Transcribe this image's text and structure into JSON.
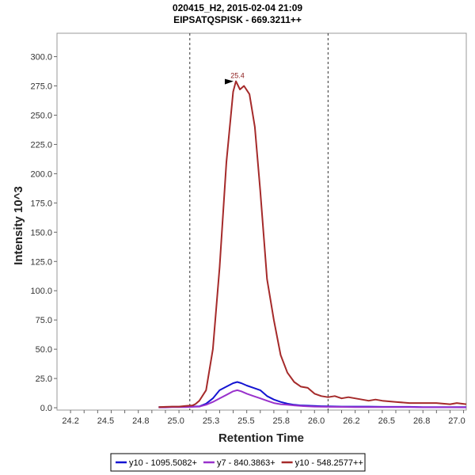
{
  "chart_data": {
    "type": "line",
    "title": "020415_H2, 2015-02-04 21:09",
    "subtitle": "EIPSATQSPISK - 669.3211++",
    "xlabel": "Retention Time",
    "ylabel": "Intensity 10^3",
    "xlim": [
      24.1,
      27.12
    ],
    "ylim": [
      -2,
      320
    ],
    "xticks": [
      "24.2",
      "24.3",
      "24.4",
      "24.5",
      "24.6",
      "24.7",
      "24.8",
      "24.9",
      "25.0",
      "25.1",
      "25.2",
      "25.3",
      "25.4",
      "25.5",
      "25.6",
      "25.7",
      "25.8",
      "25.9",
      "26.0",
      "26.1",
      "26.2",
      "26.3",
      "26.4",
      "26.5",
      "26.6",
      "26.7",
      "26.8",
      "26.9",
      "27.0",
      "27.1"
    ],
    "xtick_labels": [
      "24.2",
      "24.5",
      "24.8",
      "25.0",
      "25.3",
      "25.5",
      "25.8",
      "26.0",
      "26.2",
      "26.5",
      "26.8",
      "27.0"
    ],
    "yticks": [
      0,
      25,
      50,
      75,
      100,
      125,
      150,
      175,
      200,
      225,
      250,
      275,
      300
    ],
    "ytick_labels": [
      "0.0",
      "25.0",
      "50.0",
      "75.0",
      "100.0",
      "125.0",
      "150.0",
      "175.0",
      "200.0",
      "225.0",
      "250.0",
      "275.0",
      "300.0"
    ],
    "vlines": [
      25.08,
      26.1
    ],
    "peak_annotation": {
      "label": "25.4",
      "x": 25.42,
      "y": 279
    },
    "grid": false,
    "legend_position": "bottom",
    "series": [
      {
        "name": "y10 - 1095.5082+",
        "color": "#1414d2",
        "x": [
          24.85,
          24.9,
          24.95,
          25.0,
          25.05,
          25.1,
          25.15,
          25.2,
          25.25,
          25.3,
          25.35,
          25.4,
          25.43,
          25.46,
          25.5,
          25.55,
          25.6,
          25.65,
          25.7,
          25.75,
          25.8,
          25.85,
          25.9,
          25.95,
          26.0,
          26.05,
          26.1,
          26.2,
          26.3,
          26.4,
          26.5,
          26.6,
          26.7,
          26.8,
          26.9,
          27.0,
          27.12
        ],
        "y": [
          0.5,
          0.5,
          0.8,
          0.8,
          1.0,
          1.0,
          1.2,
          3.5,
          8,
          15,
          18,
          21,
          22,
          21,
          19,
          17,
          15,
          10,
          7,
          5,
          3.5,
          2.5,
          2,
          1.8,
          1.5,
          1.3,
          1.2,
          1.0,
          1.0,
          1.0,
          0.8,
          0.8,
          0.8,
          0.6,
          0.6,
          0.6,
          0.5
        ]
      },
      {
        "name": "y7 - 840.3863+",
        "color": "#9932cc",
        "x": [
          24.85,
          24.9,
          24.95,
          25.0,
          25.05,
          25.1,
          25.15,
          25.2,
          25.25,
          25.3,
          25.35,
          25.4,
          25.43,
          25.46,
          25.5,
          25.55,
          25.6,
          25.65,
          25.7,
          25.75,
          25.8,
          25.85,
          25.9,
          25.95,
          26.0,
          26.05,
          26.1,
          26.2,
          26.3,
          26.4,
          26.5,
          26.6,
          26.7,
          26.8,
          26.9,
          27.0,
          27.12
        ],
        "y": [
          0.3,
          0.3,
          0.5,
          0.5,
          0.6,
          0.8,
          1.0,
          2.5,
          5,
          8,
          11,
          14,
          15,
          14,
          12,
          10,
          8,
          6,
          4,
          3,
          2.5,
          2,
          1.5,
          1.2,
          1.0,
          0.9,
          0.8,
          0.7,
          0.6,
          0.6,
          0.5,
          0.5,
          0.5,
          0.4,
          0.4,
          0.4,
          0.3
        ]
      },
      {
        "name": "y10 - 548.2577++",
        "color": "#a52a2a",
        "x": [
          24.85,
          24.9,
          24.95,
          25.0,
          25.05,
          25.1,
          25.12,
          25.15,
          25.2,
          25.25,
          25.3,
          25.35,
          25.4,
          25.42,
          25.45,
          25.48,
          25.52,
          25.56,
          25.6,
          25.65,
          25.7,
          25.75,
          25.8,
          25.85,
          25.9,
          25.95,
          26.0,
          26.05,
          26.1,
          26.15,
          26.2,
          26.25,
          26.3,
          26.35,
          26.4,
          26.45,
          26.5,
          26.6,
          26.7,
          26.8,
          26.9,
          27.0,
          27.05,
          27.12
        ],
        "y": [
          0.5,
          0.8,
          1.0,
          1.0,
          1.5,
          2.0,
          3.0,
          6,
          15,
          50,
          120,
          210,
          270,
          279,
          272,
          275,
          268,
          240,
          185,
          110,
          75,
          45,
          30,
          22,
          18,
          17,
          12,
          10,
          9,
          10,
          8,
          9,
          8,
          7,
          6,
          7,
          6,
          5,
          4,
          4,
          4,
          3,
          4,
          3
        ]
      }
    ]
  }
}
